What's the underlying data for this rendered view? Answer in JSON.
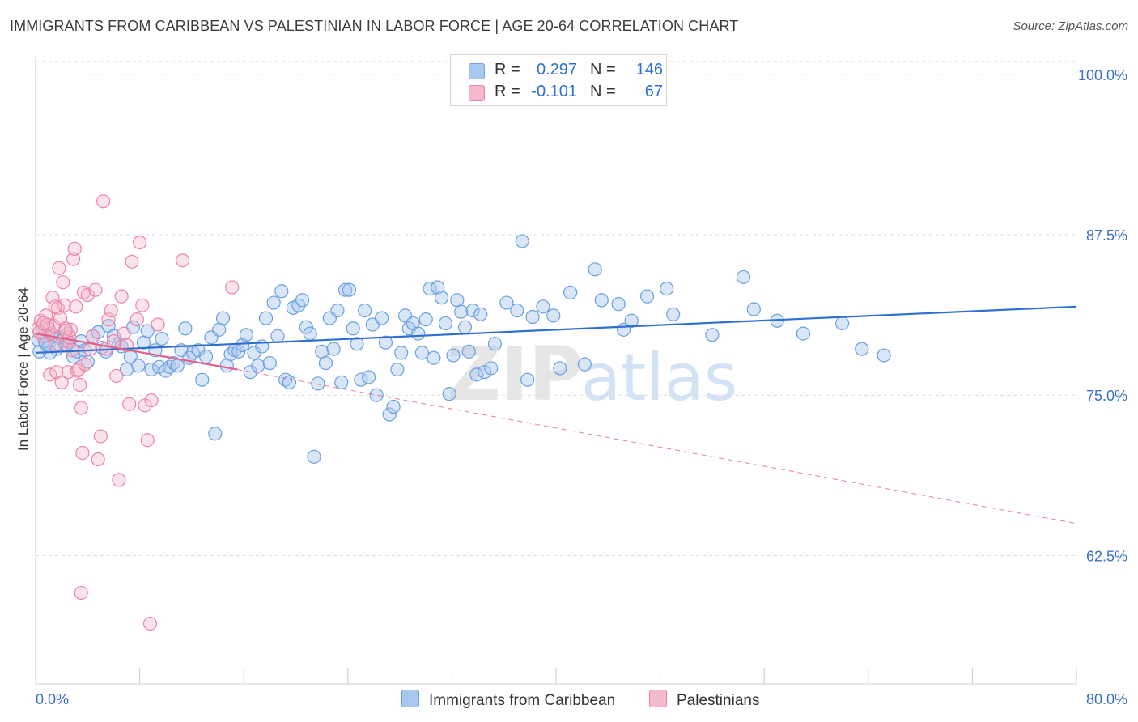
{
  "title": "IMMIGRANTS FROM CARIBBEAN VS PALESTINIAN IN LABOR FORCE | AGE 20-64 CORRELATION CHART",
  "source": "Source: ZipAtlas.com",
  "watermark": {
    "zip": "ZIP",
    "atlas": "atlas"
  },
  "colors": {
    "blue_fill": "#a9c8f0",
    "blue_stroke": "#6b9fe0",
    "blue_line": "#2f6fcf",
    "pink_fill": "#f6b9cb",
    "pink_stroke": "#ec84a6",
    "pink_line": "#e0608b",
    "axis_label": "#3a6fcc",
    "grid": "#dcdcdc"
  },
  "legend": {
    "rows": [
      {
        "r_label": "R =",
        "r_value": "0.297",
        "n_label": "N =",
        "n_value": "146",
        "series": "blue"
      },
      {
        "r_label": "R =",
        "r_value": "-0.101",
        "n_label": "N =",
        "n_value": "67",
        "series": "pink"
      }
    ]
  },
  "bottom_legend": {
    "blue_label": "Immigrants from Caribbean",
    "pink_label": "Palestinians"
  },
  "chart_data": {
    "type": "scatter",
    "title": "IMMIGRANTS FROM CARIBBEAN VS PALESTINIAN IN LABOR FORCE | AGE 20-64 CORRELATION CHART",
    "ylabel": "In Labor Force | Age 20-64",
    "x_tick_labels": [
      "0.0%",
      "80.0%"
    ],
    "y_tick_labels": [
      "100.0%",
      "87.5%",
      "75.0%",
      "62.5%"
    ],
    "y_ticks": [
      100.0,
      87.5,
      75.0,
      62.5
    ],
    "xlim": [
      0,
      80
    ],
    "ylim": [
      52.5,
      101.5
    ],
    "grid": true,
    "legend_position": "top-center",
    "series": [
      {
        "name": "Immigrants from Caribbean",
        "color": "blue",
        "trend": {
          "x": [
            0,
            80
          ],
          "y": [
            78.3,
            81.9
          ],
          "style": "solid"
        },
        "points": [
          [
            0.3,
            78.4
          ],
          [
            0.5,
            79.8
          ],
          [
            0.7,
            79.2
          ],
          [
            1.0,
            78.9
          ],
          [
            1.3,
            79.6
          ],
          [
            1.6,
            78.6
          ],
          [
            1.9,
            79.5
          ],
          [
            2.1,
            79.3
          ],
          [
            2.3,
            78.9
          ],
          [
            2.6,
            79.1
          ],
          [
            2.9,
            78.0
          ],
          [
            3.2,
            78.4
          ],
          [
            3.5,
            79.2
          ],
          [
            3.8,
            78.5
          ],
          [
            4.0,
            77.6
          ],
          [
            4.4,
            79.6
          ],
          [
            4.8,
            79.9
          ],
          [
            5.1,
            78.7
          ],
          [
            5.4,
            78.4
          ],
          [
            5.6,
            80.4
          ],
          [
            6.0,
            79.6
          ],
          [
            6.4,
            79.0
          ],
          [
            6.6,
            78.8
          ],
          [
            7.0,
            77.0
          ],
          [
            7.3,
            78.0
          ],
          [
            7.5,
            80.3
          ],
          [
            7.9,
            77.3
          ],
          [
            8.3,
            79.1
          ],
          [
            8.6,
            80.0
          ],
          [
            8.9,
            77.0
          ],
          [
            9.2,
            78.5
          ],
          [
            9.5,
            77.2
          ],
          [
            9.7,
            79.4
          ],
          [
            10.0,
            76.9
          ],
          [
            10.3,
            77.2
          ],
          [
            10.6,
            77.5
          ],
          [
            10.9,
            77.3
          ],
          [
            11.2,
            78.5
          ],
          [
            11.5,
            80.2
          ],
          [
            11.8,
            77.9
          ],
          [
            12.1,
            78.3
          ],
          [
            12.5,
            78.5
          ],
          [
            12.8,
            76.2
          ],
          [
            13.1,
            78.0
          ],
          [
            13.5,
            79.5
          ],
          [
            13.8,
            72.0
          ],
          [
            14.1,
            80.1
          ],
          [
            14.4,
            81.0
          ],
          [
            14.7,
            77.3
          ],
          [
            15.0,
            78.2
          ],
          [
            15.3,
            78.5
          ],
          [
            15.6,
            78.4
          ],
          [
            15.9,
            78.9
          ],
          [
            16.2,
            79.7
          ],
          [
            16.5,
            76.8
          ],
          [
            16.8,
            78.3
          ],
          [
            17.1,
            77.3
          ],
          [
            17.4,
            78.8
          ],
          [
            17.7,
            81.0
          ],
          [
            18.0,
            77.5
          ],
          [
            18.3,
            82.2
          ],
          [
            18.6,
            79.6
          ],
          [
            18.9,
            83.1
          ],
          [
            19.2,
            76.2
          ],
          [
            19.5,
            76.0
          ],
          [
            19.8,
            81.8
          ],
          [
            20.2,
            82.0
          ],
          [
            20.5,
            82.4
          ],
          [
            20.8,
            80.3
          ],
          [
            21.1,
            79.8
          ],
          [
            21.4,
            70.2
          ],
          [
            21.7,
            75.9
          ],
          [
            22.0,
            78.4
          ],
          [
            22.3,
            77.5
          ],
          [
            22.6,
            81.0
          ],
          [
            22.9,
            78.6
          ],
          [
            23.2,
            81.6
          ],
          [
            23.5,
            76.0
          ],
          [
            23.8,
            83.2
          ],
          [
            24.1,
            83.2
          ],
          [
            24.4,
            80.2
          ],
          [
            24.7,
            79.0
          ],
          [
            25.0,
            76.2
          ],
          [
            25.3,
            81.6
          ],
          [
            25.6,
            76.4
          ],
          [
            25.9,
            80.5
          ],
          [
            26.2,
            75.0
          ],
          [
            26.6,
            81.0
          ],
          [
            26.9,
            79.1
          ],
          [
            27.2,
            73.5
          ],
          [
            27.5,
            74.1
          ],
          [
            27.8,
            77.0
          ],
          [
            28.1,
            78.3
          ],
          [
            28.4,
            81.2
          ],
          [
            28.7,
            80.2
          ],
          [
            29.0,
            80.6
          ],
          [
            29.4,
            79.8
          ],
          [
            29.7,
            78.3
          ],
          [
            30.0,
            80.9
          ],
          [
            30.3,
            83.3
          ],
          [
            30.6,
            77.9
          ],
          [
            30.9,
            83.4
          ],
          [
            31.2,
            82.6
          ],
          [
            31.5,
            80.6
          ],
          [
            31.8,
            75.1
          ],
          [
            32.1,
            78.1
          ],
          [
            32.4,
            82.4
          ],
          [
            32.7,
            81.5
          ],
          [
            33.0,
            80.3
          ],
          [
            33.3,
            78.4
          ],
          [
            33.6,
            81.6
          ],
          [
            33.9,
            76.6
          ],
          [
            34.2,
            81.3
          ],
          [
            34.5,
            76.8
          ],
          [
            35.0,
            77.1
          ],
          [
            35.3,
            79.0
          ],
          [
            36.2,
            82.2
          ],
          [
            37.0,
            81.6
          ],
          [
            37.4,
            87.0
          ],
          [
            37.8,
            76.2
          ],
          [
            38.2,
            81.1
          ],
          [
            39.0,
            81.9
          ],
          [
            39.8,
            81.2
          ],
          [
            40.3,
            77.1
          ],
          [
            41.1,
            83.0
          ],
          [
            42.2,
            77.4
          ],
          [
            43.0,
            84.8
          ],
          [
            43.5,
            82.4
          ],
          [
            44.8,
            82.1
          ],
          [
            45.2,
            80.1
          ],
          [
            45.8,
            80.8
          ],
          [
            47.0,
            82.7
          ],
          [
            48.5,
            83.3
          ],
          [
            49.0,
            81.3
          ],
          [
            52.0,
            79.7
          ],
          [
            54.4,
            84.2
          ],
          [
            55.2,
            81.7
          ],
          [
            57.0,
            80.8
          ],
          [
            59.0,
            79.8
          ],
          [
            62.0,
            80.6
          ],
          [
            63.5,
            78.6
          ],
          [
            65.2,
            78.1
          ],
          [
            0.2,
            79.3
          ],
          [
            1.1,
            78.3
          ],
          [
            2.5,
            79.8
          ],
          [
            0.8,
            79.0
          ]
        ]
      },
      {
        "name": "Palestinians",
        "color": "pink",
        "trend": {
          "x": [
            0,
            15.5
          ],
          "y": [
            79.8,
            77.0
          ],
          "style": "solid",
          "extended": {
            "x": [
              15.5,
              80
            ],
            "y": [
              77.0,
              65.0
            ],
            "style": "dashed"
          }
        },
        "points": [
          [
            0.2,
            80.2
          ],
          [
            0.4,
            80.8
          ],
          [
            0.6,
            79.6
          ],
          [
            0.8,
            81.2
          ],
          [
            1.0,
            80.2
          ],
          [
            1.1,
            76.6
          ],
          [
            1.2,
            79.8
          ],
          [
            1.3,
            82.6
          ],
          [
            1.4,
            80.4
          ],
          [
            1.5,
            78.9
          ],
          [
            1.6,
            76.8
          ],
          [
            1.7,
            81.8
          ],
          [
            1.8,
            84.9
          ],
          [
            1.9,
            81.0
          ],
          [
            2.0,
            76.0
          ],
          [
            2.1,
            83.8
          ],
          [
            2.2,
            82.0
          ],
          [
            2.3,
            80.2
          ],
          [
            2.4,
            79.2
          ],
          [
            2.5,
            76.8
          ],
          [
            2.6,
            79.5
          ],
          [
            2.7,
            80.1
          ],
          [
            2.8,
            78.5
          ],
          [
            2.9,
            85.6
          ],
          [
            3.0,
            86.4
          ],
          [
            3.1,
            81.9
          ],
          [
            3.2,
            76.9
          ],
          [
            3.3,
            77.0
          ],
          [
            3.4,
            75.8
          ],
          [
            3.5,
            74.0
          ],
          [
            3.6,
            70.5
          ],
          [
            3.7,
            83.0
          ],
          [
            3.8,
            77.4
          ],
          [
            4.0,
            82.8
          ],
          [
            4.2,
            78.6
          ],
          [
            4.4,
            79.6
          ],
          [
            4.6,
            83.2
          ],
          [
            4.8,
            70.0
          ],
          [
            5.0,
            71.8
          ],
          [
            5.2,
            90.1
          ],
          [
            5.4,
            78.6
          ],
          [
            5.6,
            80.9
          ],
          [
            5.8,
            81.6
          ],
          [
            6.0,
            79.2
          ],
          [
            6.2,
            76.5
          ],
          [
            6.4,
            68.4
          ],
          [
            6.6,
            82.7
          ],
          [
            6.8,
            79.8
          ],
          [
            7.0,
            78.9
          ],
          [
            7.2,
            74.3
          ],
          [
            7.4,
            85.4
          ],
          [
            7.8,
            80.9
          ],
          [
            8.0,
            86.9
          ],
          [
            8.2,
            82.0
          ],
          [
            8.4,
            74.2
          ],
          [
            8.6,
            71.5
          ],
          [
            8.9,
            74.6
          ],
          [
            9.4,
            80.5
          ],
          [
            0.3,
            79.9
          ],
          [
            0.9,
            80.5
          ],
          [
            1.5,
            81.9
          ],
          [
            2.3,
            80.0
          ],
          [
            3.5,
            59.6
          ],
          [
            8.8,
            57.2
          ],
          [
            11.3,
            85.5
          ],
          [
            15.1,
            83.4
          ],
          [
            0.6,
            80.6
          ]
        ]
      }
    ]
  }
}
